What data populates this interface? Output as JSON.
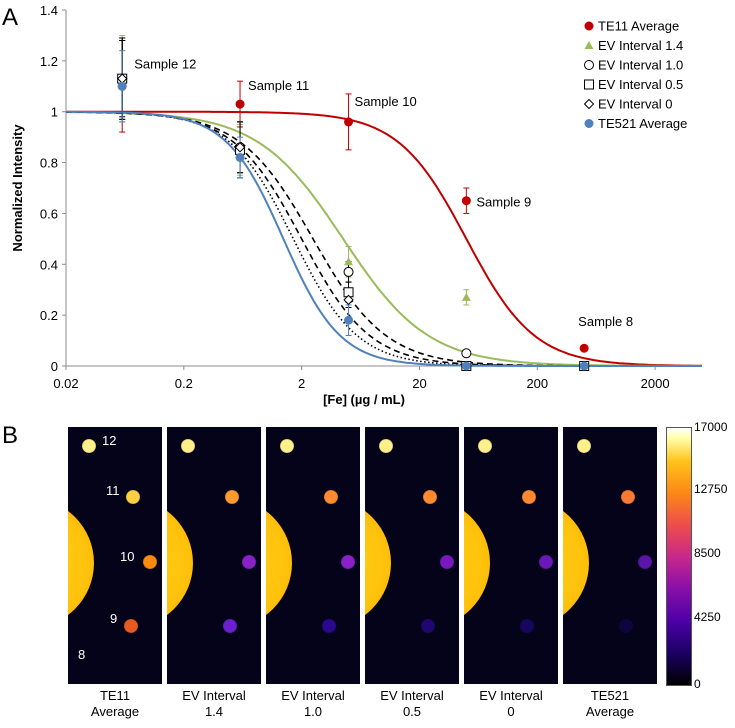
{
  "panel_a_label": "A",
  "panel_b_label": "B",
  "chart_data": {
    "type": "scatter",
    "title": "",
    "xlabel": "[Fe] (µg / mL)",
    "ylabel": "Normalized Intensity",
    "xscale": "log",
    "xlim": [
      0.02,
      5000
    ],
    "ylim": [
      0,
      1.4
    ],
    "xticks": [
      0.02,
      0.2,
      2,
      20,
      200,
      2000
    ],
    "xtick_labels": [
      "0.02",
      "0.2",
      "2",
      "20",
      "200",
      "2000"
    ],
    "yticks": [
      0,
      0.2,
      0.4,
      0.6,
      0.8,
      1,
      1.2,
      1.4
    ],
    "ytick_labels": [
      "0",
      "0.2",
      "0.4",
      "0.6",
      "0.8",
      "1",
      "1.2",
      "1.4"
    ],
    "legend_position": "top-right",
    "series": [
      {
        "name": "TE11 Average",
        "color": "#c00000",
        "marker": "circle-filled",
        "line": "solid",
        "x": [
          0.06,
          0.6,
          5,
          50,
          500
        ],
        "y": [
          1.1,
          1.03,
          0.96,
          0.65,
          0.07
        ],
        "err": [
          0.18,
          0.09,
          0.11,
          0.05,
          0
        ],
        "ec50": 50,
        "hill": 1.5
      },
      {
        "name": "EV Interval 1.4",
        "color": "#9bbb59",
        "marker": "triangle-filled",
        "line": "solid",
        "x": [
          0.06,
          0.6,
          5,
          50,
          500
        ],
        "y": [
          1.13,
          0.85,
          0.41,
          0.27,
          0.0
        ],
        "err": [
          0.17,
          0.1,
          0.06,
          0.03,
          0
        ],
        "ec50": 4.5,
        "hill": 1.2
      },
      {
        "name": "EV Interval 1.0",
        "color": "#000000",
        "marker": "circle-open",
        "line": "dashed",
        "x": [
          0.06,
          0.6,
          5,
          50,
          500
        ],
        "y": [
          1.13,
          0.86,
          0.37,
          0.05,
          0.0
        ],
        "err": [
          0.16,
          0.1,
          0.04,
          0,
          0
        ],
        "ec50": 2.5,
        "hill": 1.4
      },
      {
        "name": "EV Interval 0.5",
        "color": "#000000",
        "marker": "square-open",
        "line": "dashed",
        "x": [
          0.06,
          0.6,
          5,
          50,
          500
        ],
        "y": [
          1.13,
          0.85,
          0.29,
          0.0,
          0.0
        ],
        "err": [
          0.16,
          0.11,
          0.04,
          0,
          0
        ],
        "ec50": 2.0,
        "hill": 1.5
      },
      {
        "name": "EV Interval 0",
        "color": "#000000",
        "marker": "diamond-open",
        "line": "dotted",
        "x": [
          0.06,
          0.6,
          5,
          50,
          500
        ],
        "y": [
          1.13,
          0.86,
          0.26,
          0.0,
          0.0
        ],
        "err": [
          0.15,
          0.1,
          0.03,
          0,
          0
        ],
        "ec50": 1.7,
        "hill": 1.6
      },
      {
        "name": "TE521 Average",
        "color": "#4f81bd",
        "marker": "circle-filled",
        "line": "solid",
        "x": [
          0.06,
          0.6,
          5,
          50,
          500
        ],
        "y": [
          1.1,
          0.82,
          0.18,
          0.0,
          0.0
        ],
        "err": [
          0.14,
          0.08,
          0.06,
          0,
          0
        ],
        "ec50": 1.4,
        "hill": 1.8
      }
    ],
    "annotations": [
      {
        "text": "Sample 12",
        "x": 0.06,
        "y": 1.13
      },
      {
        "text": "Sample 11",
        "x": 0.6,
        "y": 1.03
      },
      {
        "text": "Sample 10",
        "x": 5,
        "y": 0.96
      },
      {
        "text": "Sample 9",
        "x": 50,
        "y": 0.65
      },
      {
        "text": "Sample 8",
        "x": 500,
        "y": 0.07
      }
    ]
  },
  "panel_b": {
    "panels": [
      {
        "caption_line1": "TE11",
        "caption_line2": "Average",
        "dots": [
          "#fff08a",
          "#ffd040",
          "#ff8a10",
          "#e85a20",
          "#2a0890"
        ],
        "sample_labels": [
          "12",
          "11",
          "10",
          "9",
          "8"
        ]
      },
      {
        "caption_line1": "EV Interval",
        "caption_line2": "1.4",
        "dots": [
          "#fff08a",
          "#ff9a30",
          "#8a20c8",
          "#6a20d0",
          "#140450"
        ],
        "sample_labels": []
      },
      {
        "caption_line1": "EV Interval",
        "caption_line2": "1.0",
        "dots": [
          "#fff08a",
          "#ff8a30",
          "#8a20c8",
          "#2a0890",
          "#080230"
        ],
        "sample_labels": []
      },
      {
        "caption_line1": "EV Interval",
        "caption_line2": "0.5",
        "dots": [
          "#fff08a",
          "#ff8a30",
          "#7a18c0",
          "#200670",
          "#080230"
        ],
        "sample_labels": []
      },
      {
        "caption_line1": "EV Interval",
        "caption_line2": "0",
        "dots": [
          "#fff08a",
          "#ff8a30",
          "#6a18b8",
          "#180560",
          "#080230"
        ],
        "sample_labels": []
      },
      {
        "caption_line1": "TE521",
        "caption_line2": "Average",
        "dots": [
          "#fff08a",
          "#ff7a30",
          "#5a14a8",
          "#100440",
          "#080230"
        ],
        "sample_labels": []
      }
    ],
    "colorbar": {
      "max": "17000",
      "t3": "12750",
      "t2": "8500",
      "t1": "4250",
      "min": "0"
    }
  }
}
